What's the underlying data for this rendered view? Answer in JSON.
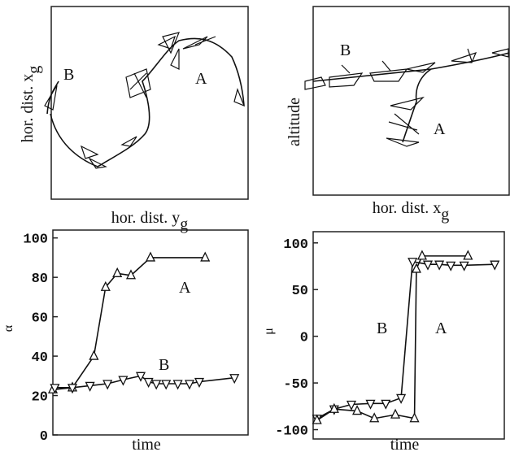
{
  "chart_data": [
    {
      "type": "trajectory",
      "xlabel": "hor. dist. y",
      "xlabel_sub": "g",
      "ylabel": "hor. dist. x",
      "ylabel_sub": "g",
      "annotations": [
        {
          "text": "B"
        },
        {
          "text": "A"
        }
      ]
    },
    {
      "type": "trajectory",
      "xlabel": "hor. dist. x",
      "xlabel_sub": "g",
      "ylabel": "altitude",
      "annotations": [
        {
          "text": "B"
        },
        {
          "text": "A"
        }
      ]
    },
    {
      "type": "line",
      "xlabel": "time",
      "ylabel": "α",
      "xlim": [
        0,
        100
      ],
      "ylim": [
        0,
        104
      ],
      "yticks": [
        0,
        20,
        40,
        60,
        80,
        100
      ],
      "series": [
        {
          "name": "A",
          "color": "#111111",
          "marker": "^",
          "x": [
            0,
            10,
            21,
            27,
            33,
            40,
            50,
            78
          ],
          "values": [
            23,
            24,
            40,
            75,
            82,
            81,
            90,
            90
          ]
        },
        {
          "name": "B",
          "color": "#111111",
          "marker": "v",
          "x": [
            1,
            10,
            19,
            28,
            36,
            45,
            49,
            53,
            58,
            64,
            70,
            75,
            93
          ],
          "values": [
            24,
            24,
            25,
            26,
            28,
            30,
            27,
            26,
            26,
            26,
            26,
            27,
            29
          ]
        }
      ]
    },
    {
      "type": "line",
      "xlabel": "time",
      "ylabel": "μ",
      "xlim": [
        0,
        100
      ],
      "ylim": [
        -110,
        112
      ],
      "yticks": [
        -100,
        -50,
        0,
        50,
        100
      ],
      "series": [
        {
          "name": "B",
          "color": "#111111",
          "marker": "v",
          "x": [
            2,
            11,
            20,
            30,
            38,
            46,
            52,
            60,
            66,
            72,
            79,
            95
          ],
          "values": [
            -88,
            -78,
            -73,
            -72,
            -72,
            -66,
            80,
            77,
            77,
            76,
            76,
            77
          ]
        },
        {
          "name": "A",
          "color": "#111111",
          "marker": "^",
          "x": [
            2,
            11,
            23,
            32,
            43,
            53,
            54,
            57,
            81
          ],
          "values": [
            -90,
            -78,
            -80,
            -88,
            -84,
            -88,
            72,
            86,
            86
          ]
        }
      ]
    }
  ]
}
